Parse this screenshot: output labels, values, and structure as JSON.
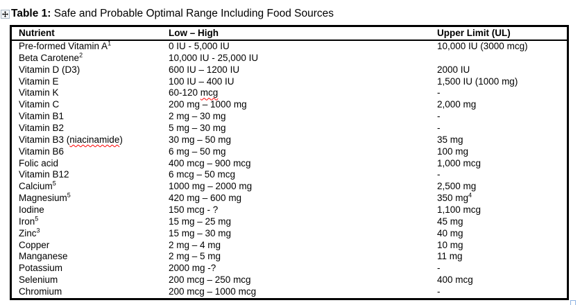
{
  "doc": {
    "title_prefix": "Table 1:",
    "title_rest": " Safe and Probable Optimal Range Including Food Sources"
  },
  "icons": {
    "move_handle": "four-way-arrow-icon",
    "resize_handle": "table-resize-square-icon"
  },
  "colors": {
    "text": "#000000",
    "table_border": "#000000",
    "spellcheck_squiggle": "#ff0000",
    "move_handle_border": "#a8b6c4",
    "resize_handle_border": "#8eb4e3"
  },
  "table": {
    "columns": [
      "Nutrient",
      "Low – High",
      "Upper Limit (UL)"
    ],
    "rows": [
      {
        "nutrient": "Pre-formed Vitamin A",
        "sup": "1",
        "range": "0 IU - 5,000 IU",
        "upper": "10,000 IU (3000 mcg)"
      },
      {
        "nutrient": "Beta Carotene",
        "sup": "2",
        "range": "10,000 IU - 25,000 IU",
        "upper": ""
      },
      {
        "nutrient": "Vitamin D (D3)",
        "range": "600 IU – 1200 IU",
        "upper": "2000 IU"
      },
      {
        "nutrient": "Vitamin E",
        "range": "100 IU – 400 IU",
        "upper": "1,500 IU (1000 mg)"
      },
      {
        "nutrient": "Vitamin K",
        "range": "60-120 mcg",
        "range_squiggle": "mcg",
        "upper": "-"
      },
      {
        "nutrient": "Vitamin C",
        "range": "200 mg – 1000 mg",
        "upper": "2,000 mg"
      },
      {
        "nutrient": "Vitamin B1",
        "range": "2 mg – 30 mg",
        "upper": "-"
      },
      {
        "nutrient": "Vitamin B2",
        "range": "5 mg – 30 mg",
        "upper": "-"
      },
      {
        "nutrient": "Vitamin B3 (niacinamide)",
        "nutrient_squiggle": "niacinamide",
        "range": "30 mg – 50 mg",
        "upper": "35 mg"
      },
      {
        "nutrient": "Vitamin B6",
        "range": "6 mg – 50 mg",
        "upper": "100 mg"
      },
      {
        "nutrient": "Folic acid",
        "range": "400 mcg – 900 mcg",
        "upper": "1,000 mcg"
      },
      {
        "nutrient": "Vitamin B12",
        "range": "6 mcg – 50 mcg",
        "upper": "-"
      },
      {
        "nutrient": "Calcium",
        "sup": "5",
        "range": "1000 mg – 2000 mg",
        "upper": "2,500 mg"
      },
      {
        "nutrient": "Magnesium",
        "sup": "5",
        "range": "420 mg – 600 mg",
        "upper": "350 mg",
        "upper_sup": "4"
      },
      {
        "nutrient": "Iodine",
        "range": "150 mcg - ?",
        "upper": "1,100 mcg"
      },
      {
        "nutrient": "Iron",
        "sup": "5",
        "range": "15 mg – 25 mg",
        "upper": "45 mg"
      },
      {
        "nutrient": "Zinc",
        "sup": "3",
        "range": "15 mg – 30 mg",
        "upper": "40 mg"
      },
      {
        "nutrient": "Copper",
        "range": "2 mg – 4 mg",
        "upper": "10 mg"
      },
      {
        "nutrient": "Manganese",
        "range": "2 mg – 5 mg",
        "upper": "11 mg"
      },
      {
        "nutrient": "Potassium",
        "range": "2000 mg -?",
        "upper": "-"
      },
      {
        "nutrient": "Selenium",
        "range": "200 mcg – 250 mcg",
        "upper": "400 mcg"
      },
      {
        "nutrient": "Chromium",
        "range": "200 mcg – 1000 mcg",
        "upper": "-"
      }
    ]
  }
}
